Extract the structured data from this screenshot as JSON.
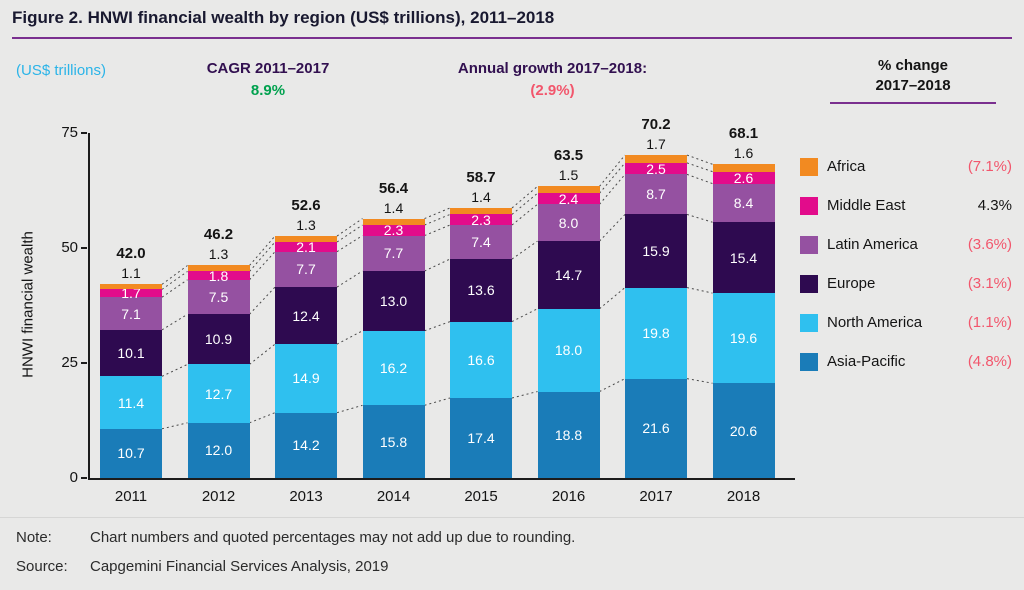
{
  "figure": {
    "title": "Figure 2. HNWI financial wealth by region (US$ trillions), 2011–2018"
  },
  "header": {
    "unit_label": "(US$ trillions)",
    "cagr_label": "CAGR 2011–2017",
    "cagr_value": "8.9%",
    "growth_label": "Annual growth 2017–2018:",
    "growth_value": "(2.9%)",
    "pct_change_line1": "% change",
    "pct_change_line2": "2017–2018"
  },
  "colors": {
    "accent_purple": "#7a2f8f",
    "positive_green": "#00a14e",
    "negative_pink": "#f2566c",
    "cyan_text": "#2bb4e8"
  },
  "legend": {
    "items": [
      {
        "label": "Africa",
        "color": "#f28a21",
        "change": "(7.1%)",
        "change_color": "#f2566c"
      },
      {
        "label": "Middle East",
        "color": "#e20c8b",
        "change": "4.3%",
        "change_color": "#141414"
      },
      {
        "label": "Latin America",
        "color": "#9551a1",
        "change": "(3.6%)",
        "change_color": "#f2566c"
      },
      {
        "label": "Europe",
        "color": "#2e0a50",
        "change": "(3.1%)",
        "change_color": "#f2566c"
      },
      {
        "label": "North America",
        "color": "#2fc0ef",
        "change": "(1.1%)",
        "change_color": "#f2566c"
      },
      {
        "label": "Asia-Pacific",
        "color": "#1a7cb8",
        "change": "(4.8%)",
        "change_color": "#f2566c"
      }
    ]
  },
  "chart_data": {
    "type": "bar",
    "stacked": true,
    "title": "HNWI financial wealth by region (US$ trillions), 2011–2018",
    "xlabel": "",
    "ylabel": "HNWI financial wealth",
    "ylim": [
      0,
      75
    ],
    "yticks": [
      0,
      25,
      50,
      75
    ],
    "grid": false,
    "legend_position": "right",
    "categories": [
      "2011",
      "2012",
      "2013",
      "2014",
      "2015",
      "2016",
      "2017",
      "2018"
    ],
    "series": [
      {
        "name": "Asia-Pacific",
        "color": "#1a7cb8",
        "label_position": "inside",
        "values": [
          10.7,
          12.0,
          14.2,
          15.8,
          17.4,
          18.8,
          21.6,
          20.6
        ]
      },
      {
        "name": "North America",
        "color": "#2fc0ef",
        "label_position": "inside",
        "values": [
          11.4,
          12.7,
          14.9,
          16.2,
          16.6,
          18.0,
          19.8,
          19.6
        ]
      },
      {
        "name": "Europe",
        "color": "#2e0a50",
        "label_position": "inside",
        "values": [
          10.1,
          10.9,
          12.4,
          13.0,
          13.6,
          14.7,
          15.9,
          15.4
        ]
      },
      {
        "name": "Latin America",
        "color": "#9551a1",
        "label_position": "inside",
        "values": [
          7.1,
          7.5,
          7.7,
          7.7,
          7.4,
          8.0,
          8.7,
          8.4
        ]
      },
      {
        "name": "Middle East",
        "color": "#e20c8b",
        "label_position": "inside",
        "values": [
          1.7,
          1.8,
          2.1,
          2.3,
          2.3,
          2.4,
          2.5,
          2.6
        ]
      },
      {
        "name": "Africa",
        "color": "#f28a21",
        "label_position": "above",
        "values": [
          1.1,
          1.3,
          1.3,
          1.4,
          1.4,
          1.5,
          1.7,
          1.6
        ]
      }
    ],
    "totals": [
      42.0,
      46.2,
      52.6,
      56.4,
      58.7,
      63.5,
      70.2,
      68.1
    ]
  },
  "footer": {
    "note_label": "Note:",
    "note_text": "Chart numbers and quoted percentages may not add up due to rounding.",
    "source_label": "Source:",
    "source_text": "Capgemini Financial Services Analysis, 2019"
  }
}
